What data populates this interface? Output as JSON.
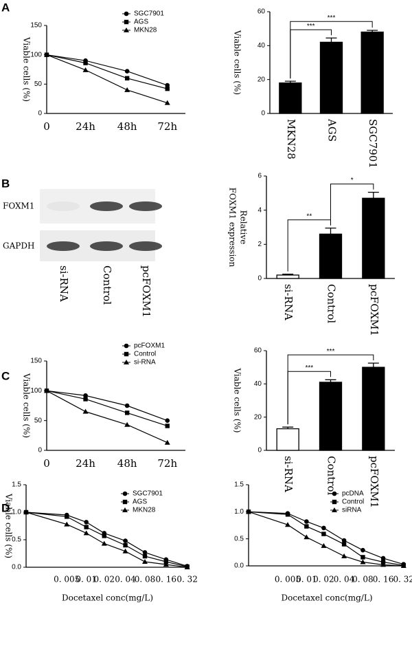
{
  "panels": [
    "A",
    "B",
    "C",
    "D"
  ],
  "blot": {
    "rows": [
      "FOXM1",
      "GAPDH"
    ],
    "lanes": [
      "si-RNA",
      "Control",
      "pcFOXM1"
    ]
  },
  "chart_data": [
    {
      "type": "line",
      "categories": [
        "0",
        "24h",
        "48h",
        "72h"
      ],
      "ylabel": "Viable cells (%)",
      "ylim": [
        0,
        150
      ],
      "yticks": [
        0,
        50,
        100,
        150
      ],
      "legend": "upper right",
      "series": [
        {
          "name": "SGC7901",
          "color": "#000000",
          "marker": "circle",
          "values": [
            100,
            90,
            72,
            48
          ]
        },
        {
          "name": "AGS",
          "color": "#000000",
          "marker": "square",
          "values": [
            100,
            86,
            60,
            42
          ]
        },
        {
          "name": "MKN28",
          "color": "#000000",
          "marker": "triangle",
          "values": [
            100,
            74,
            40,
            18
          ]
        }
      ]
    },
    {
      "type": "bar",
      "categories": [
        "MKN28",
        "AGS",
        "SGC7901"
      ],
      "values": [
        18,
        42,
        48
      ],
      "errors": [
        1,
        2.5,
        1
      ],
      "colors": [
        "#000000",
        "#000000",
        "#000000"
      ],
      "ylabel": "Viable cells (%)",
      "ylim": [
        0,
        60
      ],
      "yticks": [
        0,
        20,
        40,
        60
      ],
      "comparisons": [
        {
          "label": "***",
          "between": [
            "MKN28",
            "AGS"
          ]
        },
        {
          "label": "***",
          "between": [
            "MKN28",
            "SGC7901"
          ]
        }
      ]
    },
    {
      "type": "bar",
      "categories": [
        "si-RNA",
        "Control",
        "pcFOXM1"
      ],
      "values": [
        0.2,
        2.6,
        4.7
      ],
      "errors": [
        0.05,
        0.35,
        0.35
      ],
      "colors": [
        "#ffffff",
        "#000000",
        "#000000"
      ],
      "ylabel": [
        "Relative",
        "FOXM1 expression"
      ],
      "ylim": [
        0,
        6
      ],
      "yticks": [
        0,
        2,
        4,
        6
      ],
      "comparisons": [
        {
          "label": "**",
          "between": [
            "si-RNA",
            "Control"
          ]
        },
        {
          "label": "*",
          "between": [
            "Control",
            "pcFOXM1"
          ]
        }
      ]
    },
    {
      "type": "line",
      "categories": [
        "0",
        "24h",
        "48h",
        "72h"
      ],
      "ylabel": "Viable cells (%)",
      "ylim": [
        0,
        150
      ],
      "yticks": [
        0,
        50,
        100,
        150
      ],
      "legend": "upper right",
      "series": [
        {
          "name": "pcFOXM1",
          "color": "#000000",
          "marker": "circle",
          "values": [
            100,
            92,
            75,
            50
          ]
        },
        {
          "name": "Control",
          "color": "#000000",
          "marker": "square",
          "values": [
            100,
            86,
            63,
            41
          ]
        },
        {
          "name": "si-RNA",
          "color": "#000000",
          "marker": "triangle",
          "values": [
            100,
            65,
            43,
            13
          ]
        }
      ]
    },
    {
      "type": "bar",
      "categories": [
        "si-RNA",
        "Control",
        "pcFOXM1"
      ],
      "values": [
        13,
        41,
        50
      ],
      "errors": [
        1,
        1.5,
        2.5
      ],
      "colors": [
        "#ffffff",
        "#000000",
        "#000000"
      ],
      "ylabel": "Viable cells (%)",
      "ylim": [
        0,
        60
      ],
      "yticks": [
        0,
        20,
        40,
        60
      ],
      "comparisons": [
        {
          "label": "***",
          "between": [
            "si-RNA",
            "Control"
          ]
        },
        {
          "label": "***",
          "between": [
            "si-RNA",
            "pcFOXM1"
          ]
        }
      ]
    },
    {
      "type": "line",
      "categories": [
        null,
        "0. 005",
        "0. 01",
        "0. 02",
        "0. 04",
        "0. 08",
        "0. 16",
        "0. 32"
      ],
      "ylabel": "Viable cells (%)",
      "xlabel": "Docetaxel conc(mg/L)",
      "ylim": [
        0,
        1.5
      ],
      "yticks": [
        {
          "value": 0,
          "label": "0.0"
        },
        {
          "value": 0.5,
          "label": "0.5"
        },
        {
          "value": 1,
          "label": "1.0"
        },
        {
          "value": 1.5,
          "label": "1.5"
        }
      ],
      "legend": "upper right",
      "series": [
        {
          "name": "SGC7901",
          "color": "#000000",
          "marker": "circle",
          "values": [
            1.0,
            0.95,
            0.82,
            0.62,
            0.48,
            0.27,
            0.14,
            0.02
          ]
        },
        {
          "name": "AGS",
          "color": "#000000",
          "marker": "square",
          "values": [
            1.0,
            0.92,
            0.73,
            0.57,
            0.4,
            0.2,
            0.1,
            0.01
          ]
        },
        {
          "name": "MKN28",
          "color": "#000000",
          "marker": "triangle",
          "values": [
            1.0,
            0.78,
            0.62,
            0.43,
            0.29,
            0.1,
            0.05,
            0.0
          ]
        }
      ]
    },
    {
      "type": "line",
      "categories": [
        null,
        "0. 005",
        "0. 01",
        "0. 02",
        "0. 04",
        "0. 08",
        "0. 16",
        "0. 32"
      ],
      "xlabel": "Docetaxel conc(mg/L)",
      "ylim": [
        0,
        1.5
      ],
      "yticks": [
        {
          "value": 0,
          "label": "0.0"
        },
        {
          "value": 0.5,
          "label": "0.5"
        },
        {
          "value": 1,
          "label": "1.0"
        },
        {
          "value": 1.5,
          "label": "1.5"
        }
      ],
      "legend": "upper right",
      "series": [
        {
          "name": "pcDNA",
          "color": "#000000",
          "marker": "circle",
          "values": [
            1.0,
            0.97,
            0.82,
            0.7,
            0.47,
            0.29,
            0.14,
            0.03
          ]
        },
        {
          "name": "Control",
          "color": "#000000",
          "marker": "square",
          "values": [
            1.0,
            0.95,
            0.73,
            0.59,
            0.4,
            0.16,
            0.07,
            0.01
          ]
        },
        {
          "name": "siRNA",
          "color": "#000000",
          "marker": "triangle",
          "values": [
            1.0,
            0.76,
            0.53,
            0.37,
            0.18,
            0.07,
            0.02,
            0.0
          ]
        }
      ]
    }
  ]
}
